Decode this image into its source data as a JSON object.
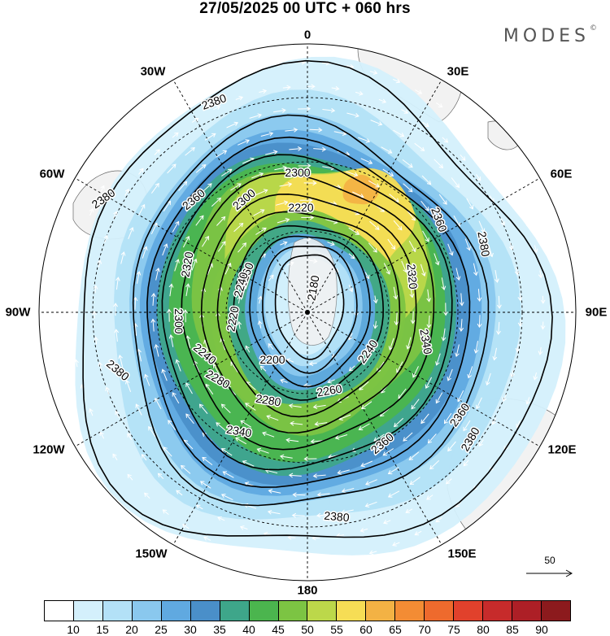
{
  "title": "27/05/2025  00 UTC  + 060 hrs",
  "logo": "MODES",
  "logo_mark": "©",
  "longitude_labels": [
    {
      "key": "0",
      "text": "0"
    },
    {
      "key": "30E",
      "text": "30E"
    },
    {
      "key": "60E",
      "text": "60E"
    },
    {
      "key": "90E",
      "text": "90E"
    },
    {
      "key": "120E",
      "text": "120E"
    },
    {
      "key": "150E",
      "text": "150E"
    },
    {
      "key": "180",
      "text": "180"
    },
    {
      "key": "150W",
      "text": "150W"
    },
    {
      "key": "120W",
      "text": "120W"
    },
    {
      "key": "90W",
      "text": "90W"
    },
    {
      "key": "60W",
      "text": "60W"
    },
    {
      "key": "30W",
      "text": "30W"
    }
  ],
  "contour_labels": [
    "2380",
    "2380",
    "2380",
    "2380",
    "2380",
    "2380",
    "2360",
    "2360",
    "2360",
    "2360",
    "2340",
    "2340",
    "2320",
    "2320",
    "2300",
    "2300",
    "2300",
    "2280",
    "2280",
    "2260",
    "2260",
    "2240",
    "2240",
    "2240",
    "2220",
    "2220",
    "2200",
    "2180"
  ],
  "reference_vector": {
    "value": "50"
  },
  "colorbar": {
    "colors": [
      "#ffffff",
      "#d4f0fc",
      "#b3e1f7",
      "#8ac8ee",
      "#60a9e0",
      "#4a8fc9",
      "#3ea68a",
      "#4bb54e",
      "#7cc443",
      "#bcd84a",
      "#f6dd55",
      "#f3b244",
      "#f38c34",
      "#ee6a2d",
      "#e1412c",
      "#c72b2b",
      "#ad1f26",
      "#8c1a1d"
    ],
    "labels": [
      "10",
      "15",
      "20",
      "25",
      "30",
      "35",
      "40",
      "45",
      "50",
      "55",
      "60",
      "65",
      "70",
      "75",
      "80",
      "85",
      "90"
    ]
  },
  "map_colors": {
    "land": "#f2f2f2",
    "wind_10": "#d4f0fc",
    "wind_20": "#b3e1f7",
    "wind_25": "#8ac8ee",
    "wind_30": "#60a9e0",
    "wind_35": "#4a8fc9",
    "wind_40": "#3ea68a",
    "wind_45": "#4bb54e",
    "wind_50": "#7cc443",
    "wind_55": "#bcd84a",
    "wind_60": "#f6dd55",
    "wind_65": "#f3b244"
  }
}
